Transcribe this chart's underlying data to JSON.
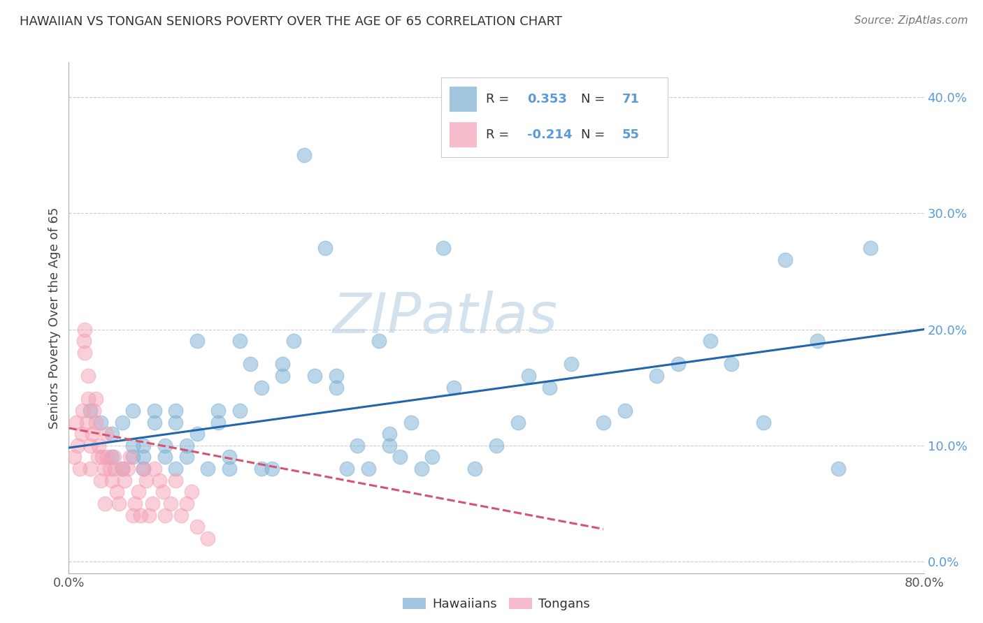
{
  "title": "HAWAIIAN VS TONGAN SENIORS POVERTY OVER THE AGE OF 65 CORRELATION CHART",
  "source": "Source: ZipAtlas.com",
  "ylabel": "Seniors Poverty Over the Age of 65",
  "xlabel": "",
  "xlim": [
    0.0,
    0.8
  ],
  "ylim": [
    -0.01,
    0.43
  ],
  "xticks": [
    0.0,
    0.1,
    0.2,
    0.3,
    0.4,
    0.5,
    0.6,
    0.7,
    0.8
  ],
  "yticks": [
    0.0,
    0.1,
    0.2,
    0.3,
    0.4
  ],
  "hawaiian_color": "#7bafd4",
  "tongan_color": "#f4a0b5",
  "hawaiian_line_color": "#2166ac",
  "tongan_line_color": "#d6546e",
  "R_hawaiian": 0.353,
  "N_hawaiian": 71,
  "R_tongan": -0.214,
  "N_tongan": 55,
  "watermark": "ZIPatlas",
  "background_color": "#ffffff",
  "hawaiian_x": [
    0.02,
    0.03,
    0.04,
    0.04,
    0.05,
    0.05,
    0.06,
    0.06,
    0.06,
    0.07,
    0.07,
    0.07,
    0.08,
    0.08,
    0.09,
    0.09,
    0.1,
    0.1,
    0.1,
    0.11,
    0.11,
    0.12,
    0.12,
    0.13,
    0.14,
    0.14,
    0.15,
    0.15,
    0.16,
    0.16,
    0.17,
    0.18,
    0.18,
    0.19,
    0.2,
    0.2,
    0.21,
    0.22,
    0.23,
    0.24,
    0.25,
    0.25,
    0.26,
    0.27,
    0.28,
    0.29,
    0.3,
    0.3,
    0.31,
    0.32,
    0.33,
    0.34,
    0.35,
    0.36,
    0.38,
    0.4,
    0.42,
    0.43,
    0.45,
    0.47,
    0.5,
    0.52,
    0.55,
    0.57,
    0.6,
    0.62,
    0.65,
    0.67,
    0.7,
    0.72,
    0.75
  ],
  "hawaiian_y": [
    0.13,
    0.12,
    0.09,
    0.11,
    0.08,
    0.12,
    0.09,
    0.13,
    0.1,
    0.08,
    0.09,
    0.1,
    0.12,
    0.13,
    0.09,
    0.1,
    0.08,
    0.12,
    0.13,
    0.09,
    0.1,
    0.11,
    0.19,
    0.08,
    0.12,
    0.13,
    0.08,
    0.09,
    0.19,
    0.13,
    0.17,
    0.15,
    0.08,
    0.08,
    0.16,
    0.17,
    0.19,
    0.35,
    0.16,
    0.27,
    0.15,
    0.16,
    0.08,
    0.1,
    0.08,
    0.19,
    0.1,
    0.11,
    0.09,
    0.12,
    0.08,
    0.09,
    0.27,
    0.15,
    0.08,
    0.1,
    0.12,
    0.16,
    0.15,
    0.17,
    0.12,
    0.13,
    0.16,
    0.17,
    0.19,
    0.17,
    0.12,
    0.26,
    0.19,
    0.08,
    0.27
  ],
  "tongan_x": [
    0.005,
    0.007,
    0.008,
    0.01,
    0.012,
    0.013,
    0.014,
    0.015,
    0.015,
    0.017,
    0.018,
    0.018,
    0.02,
    0.02,
    0.022,
    0.023,
    0.025,
    0.025,
    0.027,
    0.028,
    0.03,
    0.031,
    0.033,
    0.034,
    0.035,
    0.036,
    0.038,
    0.04,
    0.042,
    0.043,
    0.045,
    0.047,
    0.05,
    0.052,
    0.055,
    0.057,
    0.06,
    0.062,
    0.065,
    0.067,
    0.07,
    0.072,
    0.075,
    0.078,
    0.08,
    0.085,
    0.088,
    0.09,
    0.095,
    0.1,
    0.105,
    0.11,
    0.115,
    0.12,
    0.13
  ],
  "tongan_y": [
    0.09,
    0.12,
    0.1,
    0.08,
    0.11,
    0.13,
    0.19,
    0.2,
    0.18,
    0.12,
    0.14,
    0.16,
    0.1,
    0.08,
    0.11,
    0.13,
    0.12,
    0.14,
    0.09,
    0.1,
    0.07,
    0.09,
    0.08,
    0.05,
    0.11,
    0.09,
    0.08,
    0.07,
    0.09,
    0.08,
    0.06,
    0.05,
    0.08,
    0.07,
    0.08,
    0.09,
    0.04,
    0.05,
    0.06,
    0.04,
    0.08,
    0.07,
    0.04,
    0.05,
    0.08,
    0.07,
    0.06,
    0.04,
    0.05,
    0.07,
    0.04,
    0.05,
    0.06,
    0.03,
    0.02
  ],
  "hawaiian_line_x": [
    0.0,
    0.8
  ],
  "hawaiian_line_y": [
    0.098,
    0.2
  ],
  "tongan_line_x": [
    0.0,
    0.5
  ],
  "tongan_line_y": [
    0.115,
    0.028
  ]
}
